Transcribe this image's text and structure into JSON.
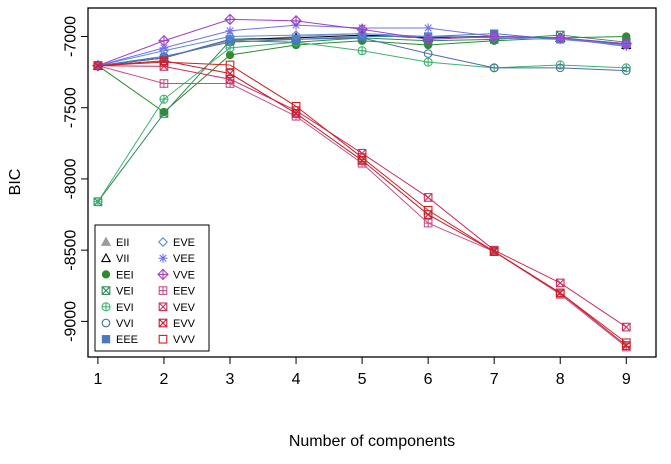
{
  "chart_data": {
    "type": "line",
    "title": "",
    "xlabel": "Number of components",
    "ylabel": "BIC",
    "xlim": [
      0.85,
      9.45
    ],
    "ylim": [
      -9250,
      -6800
    ],
    "x": [
      1,
      2,
      3,
      4,
      5,
      6,
      7,
      8,
      9
    ],
    "x_ticks": [
      "1",
      "2",
      "3",
      "4",
      "5",
      "6",
      "7",
      "8",
      "9"
    ],
    "y_ticks": [
      {
        "value": -7000,
        "label": "-7000"
      },
      {
        "value": -7500,
        "label": "-7500"
      },
      {
        "value": -8000,
        "label": "-8000"
      },
      {
        "value": -8500,
        "label": "-8500"
      },
      {
        "value": -9000,
        "label": "-9000"
      }
    ],
    "legend_position": "bottom-left",
    "series": [
      {
        "name": "EII",
        "color": "#9a9a9a",
        "symbol": "filled-triangle",
        "values": [
          -7205,
          -7150,
          -7030,
          -7000,
          -6980,
          -7000,
          -7000,
          -7010,
          -7050
        ]
      },
      {
        "name": "VII",
        "color": "#000000",
        "symbol": "triangle",
        "values": [
          -7205,
          -7150,
          -7020,
          -7010,
          -6990,
          -7010,
          -7000,
          -7010,
          -7060
        ]
      },
      {
        "name": "EEI",
        "color": "#2e8b2e",
        "symbol": "filled-circle",
        "values": [
          -7205,
          -7530,
          -7130,
          -7060,
          -7030,
          -7060,
          -7030,
          -7010,
          -7000
        ]
      },
      {
        "name": "VEI",
        "color": "#2e8b57",
        "symbol": "x-square",
        "values": [
          -8160,
          -7540,
          -7030,
          -7040,
          -7010,
          -7030,
          -7020,
          -6990,
          -7040
        ]
      },
      {
        "name": "EVI",
        "color": "#3cb371",
        "symbol": "plus-circle",
        "values": [
          -8160,
          -7440,
          -7080,
          -7040,
          -7100,
          -7180,
          -7220,
          -7200,
          -7220
        ]
      },
      {
        "name": "VVI",
        "color": "#4a6fa5",
        "symbol": "circle",
        "values": [
          -7205,
          -7140,
          -7040,
          -7020,
          -7010,
          -7120,
          -7220,
          -7220,
          -7240
        ]
      },
      {
        "name": "EEE",
        "color": "#4a78c2",
        "symbol": "filled-square",
        "values": [
          -7205,
          -7150,
          -7020,
          -7020,
          -7000,
          -7000,
          -6980,
          -7020,
          -7050
        ]
      },
      {
        "name": "EVE",
        "color": "#5b8bd8",
        "symbol": "diamond",
        "values": [
          -7205,
          -7100,
          -7000,
          -6990,
          -6980,
          -7000,
          -7010,
          -7020,
          -7060
        ]
      },
      {
        "name": "VEE",
        "color": "#7070f0",
        "symbol": "asterisk",
        "values": [
          -7205,
          -7080,
          -6960,
          -6920,
          -6940,
          -6940,
          -7000,
          -7010,
          -7070
        ]
      },
      {
        "name": "VVE",
        "color": "#a040c0",
        "symbol": "plus-diamond",
        "values": [
          -7205,
          -7030,
          -6880,
          -6890,
          -6950,
          -7020,
          -7000,
          -7010,
          -7050
        ]
      },
      {
        "name": "EEV",
        "color": "#c8508a",
        "symbol": "plus-square",
        "values": [
          -7205,
          -7330,
          -7330,
          -7560,
          -7890,
          -8310,
          -8510,
          -8810,
          -9180
        ]
      },
      {
        "name": "VEV",
        "color": "#c83060",
        "symbol": "x-square",
        "values": [
          -7205,
          -7210,
          -7300,
          -7520,
          -7820,
          -8130,
          -8500,
          -8730,
          -9040
        ]
      },
      {
        "name": "EVV",
        "color": "#c02030",
        "symbol": "x-square",
        "values": [
          -7205,
          -7170,
          -7260,
          -7540,
          -7870,
          -8250,
          -8510,
          -8800,
          -9170
        ]
      },
      {
        "name": "VVV",
        "color": "#d02020",
        "symbol": "square",
        "values": [
          -7205,
          -7180,
          -7200,
          -7490,
          -7850,
          -8220,
          -8510,
          -8800,
          -9150
        ]
      }
    ]
  }
}
